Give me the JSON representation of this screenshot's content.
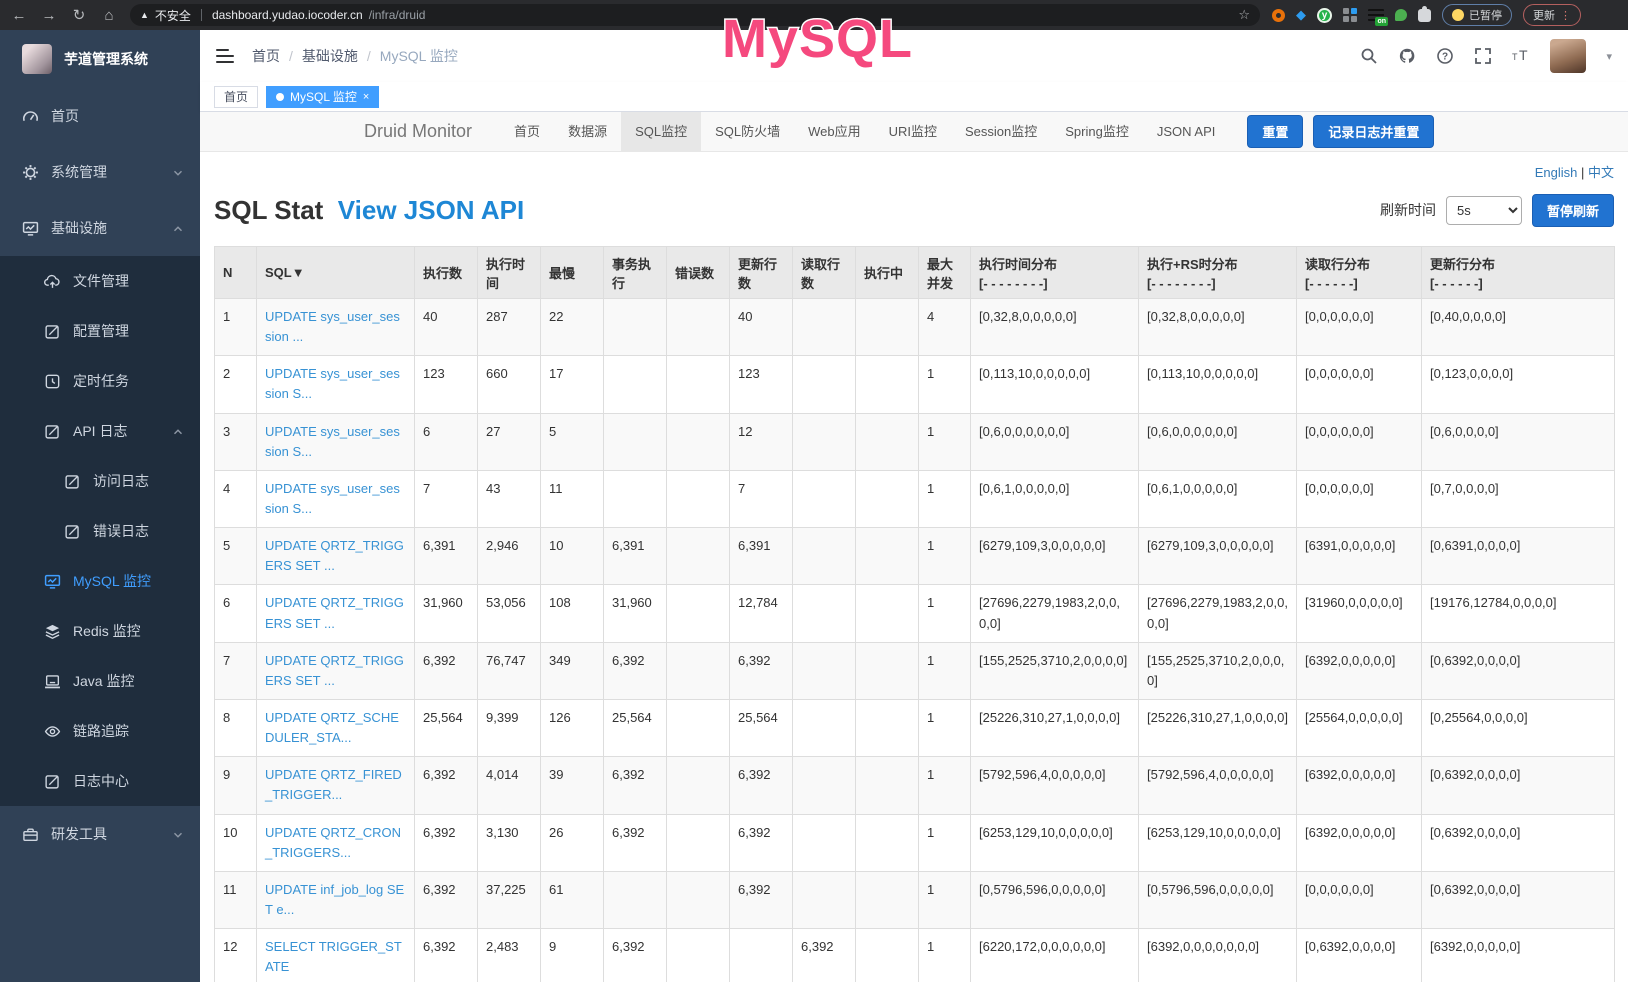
{
  "browser": {
    "security_label": "不安全",
    "url_host": "dashboard.yudao.iocoder.cn",
    "url_path": "/infra/druid",
    "extension_badge_on": "on",
    "paused_badge": "已暂停",
    "update_button": "更新"
  },
  "overlay": {
    "text": "MySQL",
    "color": "#f5497e"
  },
  "colors": {
    "accent": "#409eff",
    "druid_button": "#2173d1",
    "sidebar_bg": "#304156",
    "submenu_bg": "#1f2d3d",
    "link": "#337ab7"
  },
  "sidebar": {
    "title": "芋道管理系统",
    "items": [
      {
        "id": "home",
        "label": "首页",
        "icon": "gauge",
        "level": 1
      },
      {
        "id": "system",
        "label": "系统管理",
        "icon": "gear",
        "level": 1,
        "chevron": "down"
      },
      {
        "id": "infra",
        "label": "基础设施",
        "icon": "monitor",
        "level": 1,
        "chevron": "up"
      },
      {
        "id": "file",
        "label": "文件管理",
        "icon": "cloud-upload",
        "level": 2,
        "dark": true
      },
      {
        "id": "config",
        "label": "配置管理",
        "icon": "edit",
        "level": 2,
        "dark": true
      },
      {
        "id": "job",
        "label": "定时任务",
        "icon": "timer",
        "level": 2,
        "dark": true
      },
      {
        "id": "api-log",
        "label": "API 日志",
        "icon": "edit",
        "level": 2,
        "dark": true,
        "chevron": "up"
      },
      {
        "id": "access-log",
        "label": "访问日志",
        "icon": "edit",
        "level": 3,
        "dark": true
      },
      {
        "id": "error-log",
        "label": "错误日志",
        "icon": "edit",
        "level": 3,
        "dark": true
      },
      {
        "id": "mysql",
        "label": "MySQL 监控",
        "icon": "monitor",
        "level": 2,
        "dark": true,
        "active": true
      },
      {
        "id": "redis",
        "label": "Redis 监控",
        "icon": "layers",
        "level": 2,
        "dark": true
      },
      {
        "id": "java",
        "label": "Java 监控",
        "icon": "java",
        "level": 2,
        "dark": true
      },
      {
        "id": "trace",
        "label": "链路追踪",
        "icon": "eye",
        "level": 2,
        "dark": true
      },
      {
        "id": "log-center",
        "label": "日志中心",
        "icon": "edit",
        "level": 2,
        "dark": true
      },
      {
        "id": "dev-tools",
        "label": "研发工具",
        "icon": "toolbox",
        "level": 1,
        "chevron": "down"
      }
    ]
  },
  "header": {
    "breadcrumb": [
      "首页",
      "基础设施",
      "MySQL 监控"
    ]
  },
  "tags": [
    {
      "label": "首页",
      "active": false
    },
    {
      "label": "MySQL 监控",
      "active": true
    }
  ],
  "druid_nav": {
    "brand": "Druid Monitor",
    "items": [
      "首页",
      "数据源",
      "SQL监控",
      "SQL防火墙",
      "Web应用",
      "URI监控",
      "Session监控",
      "Spring监控",
      "JSON API"
    ],
    "active_item": "SQL监控",
    "buttons": [
      "重置",
      "记录日志并重置"
    ]
  },
  "page": {
    "lang_links": [
      "English",
      "中文"
    ],
    "title": "SQL Stat",
    "title_link": "View JSON API",
    "refresh_label": "刷新时间",
    "refresh_value": "5s",
    "pause_button": "暂停刷新"
  },
  "table": {
    "headers": [
      {
        "label": "N"
      },
      {
        "label": "SQL▼"
      },
      {
        "label": "执行数"
      },
      {
        "label": "执行时间"
      },
      {
        "label": "最慢"
      },
      {
        "label": "事务执行"
      },
      {
        "label": "错误数"
      },
      {
        "label": "更新行数"
      },
      {
        "label": "读取行数"
      },
      {
        "label": "执行中"
      },
      {
        "label": "最大并发"
      },
      {
        "label": "执行时间分布",
        "sub": "[- - - - - - - -]"
      },
      {
        "label": "执行+RS时分布",
        "sub": "[- - - - - - - -]"
      },
      {
        "label": "读取行分布",
        "sub": "[- - - - - -]"
      },
      {
        "label": "更新行分布",
        "sub": "[- - - - - -]"
      }
    ],
    "rows": [
      [
        "1",
        "UPDATE sys_user_session ...",
        "40",
        "287",
        "22",
        "",
        "",
        "40",
        "",
        "",
        "4",
        "[0,32,8,0,0,0,0,0]",
        "[0,32,8,0,0,0,0,0]",
        "[0,0,0,0,0,0]",
        "[0,40,0,0,0,0]"
      ],
      [
        "2",
        "UPDATE sys_user_session S...",
        "123",
        "660",
        "17",
        "",
        "",
        "123",
        "",
        "",
        "1",
        "[0,113,10,0,0,0,0,0]",
        "[0,113,10,0,0,0,0,0]",
        "[0,0,0,0,0,0]",
        "[0,123,0,0,0,0]"
      ],
      [
        "3",
        "UPDATE sys_user_session S...",
        "6",
        "27",
        "5",
        "",
        "",
        "12",
        "",
        "",
        "1",
        "[0,6,0,0,0,0,0,0]",
        "[0,6,0,0,0,0,0,0]",
        "[0,0,0,0,0,0]",
        "[0,6,0,0,0,0]"
      ],
      [
        "4",
        "UPDATE sys_user_session S...",
        "7",
        "43",
        "11",
        "",
        "",
        "7",
        "",
        "",
        "1",
        "[0,6,1,0,0,0,0,0]",
        "[0,6,1,0,0,0,0,0]",
        "[0,0,0,0,0,0]",
        "[0,7,0,0,0,0]"
      ],
      [
        "5",
        "UPDATE QRTZ_TRIGGERS SET ...",
        "6,391",
        "2,946",
        "10",
        "6,391",
        "",
        "6,391",
        "",
        "",
        "1",
        "[6279,109,3,0,0,0,0,0]",
        "[6279,109,3,0,0,0,0,0]",
        "[6391,0,0,0,0,0]",
        "[0,6391,0,0,0,0]"
      ],
      [
        "6",
        "UPDATE QRTZ_TRIGGERS SET ...",
        "31,960",
        "53,056",
        "108",
        "31,960",
        "",
        "12,784",
        "",
        "",
        "1",
        "[27696,2279,1983,2,0,0,0,0]",
        "[27696,2279,1983,2,0,0,0,0]",
        "[31960,0,0,0,0,0]",
        "[19176,12784,0,0,0,0]"
      ],
      [
        "7",
        "UPDATE QRTZ_TRIGGERS SET ...",
        "6,392",
        "76,747",
        "349",
        "6,392",
        "",
        "6,392",
        "",
        "",
        "1",
        "[155,2525,3710,2,0,0,0,0]",
        "[155,2525,3710,2,0,0,0,0]",
        "[6392,0,0,0,0,0]",
        "[0,6392,0,0,0,0]"
      ],
      [
        "8",
        "UPDATE QRTZ_SCHEDULER_STA...",
        "25,564",
        "9,399",
        "126",
        "25,564",
        "",
        "25,564",
        "",
        "",
        "1",
        "[25226,310,27,1,0,0,0,0]",
        "[25226,310,27,1,0,0,0,0]",
        "[25564,0,0,0,0,0]",
        "[0,25564,0,0,0,0]"
      ],
      [
        "9",
        "UPDATE QRTZ_FIRED_TRIGGER...",
        "6,392",
        "4,014",
        "39",
        "6,392",
        "",
        "6,392",
        "",
        "",
        "1",
        "[5792,596,4,0,0,0,0,0]",
        "[5792,596,4,0,0,0,0,0]",
        "[6392,0,0,0,0,0]",
        "[0,6392,0,0,0,0]"
      ],
      [
        "10",
        "UPDATE QRTZ_CRON_TRIGGERS...",
        "6,392",
        "3,130",
        "26",
        "6,392",
        "",
        "6,392",
        "",
        "",
        "1",
        "[6253,129,10,0,0,0,0,0]",
        "[6253,129,10,0,0,0,0,0]",
        "[6392,0,0,0,0,0]",
        "[0,6392,0,0,0,0]"
      ],
      [
        "11",
        "UPDATE inf_job_log SET e...",
        "6,392",
        "37,225",
        "61",
        "",
        "",
        "6,392",
        "",
        "",
        "1",
        "[0,5796,596,0,0,0,0,0]",
        "[0,5796,596,0,0,0,0,0]",
        "[0,0,0,0,0,0]",
        "[0,6392,0,0,0,0]"
      ],
      [
        "12",
        "SELECT TRIGGER_STATE",
        "6,392",
        "2,483",
        "9",
        "6,392",
        "",
        "",
        "6,392",
        "",
        "1",
        "[6220,172,0,0,0,0,0,0]",
        "[6392,0,0,0,0,0,0,0]",
        "[0,6392,0,0,0,0]",
        "[6392,0,0,0,0,0]"
      ]
    ]
  }
}
